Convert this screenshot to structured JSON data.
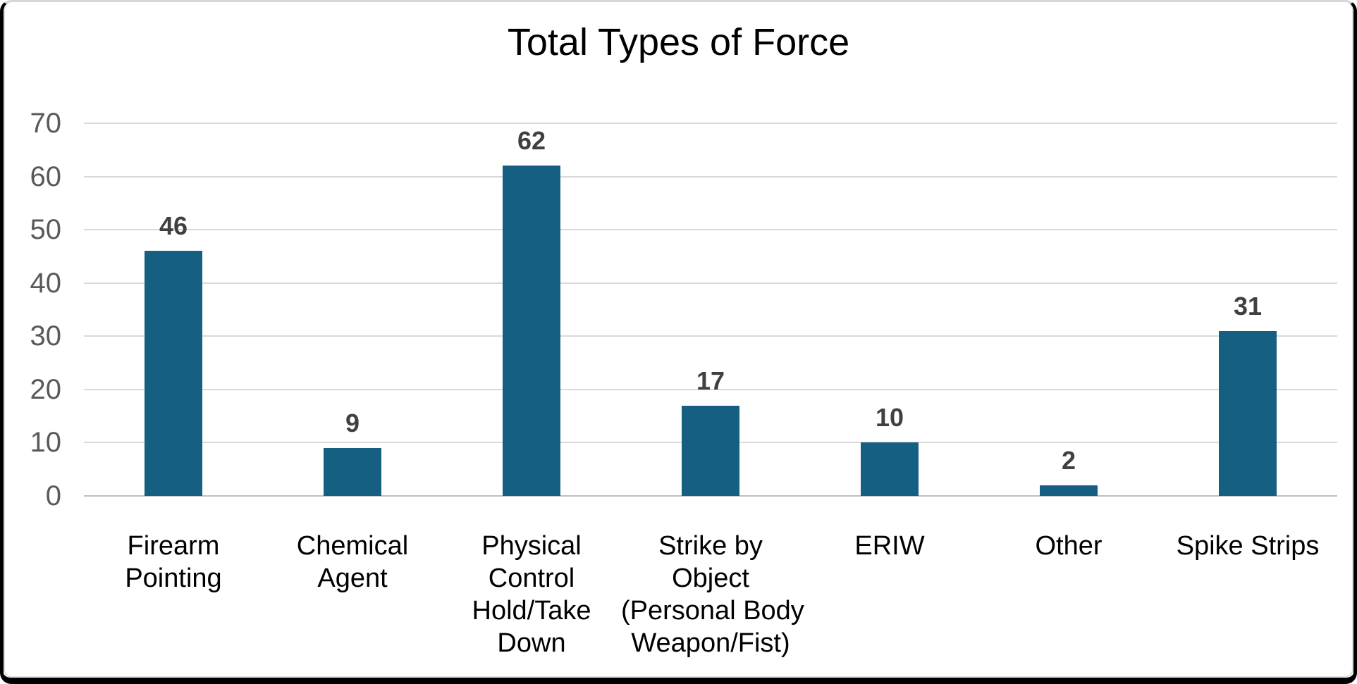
{
  "title": "Total Types of Force",
  "colors": {
    "bar_fill": "#156082",
    "gridline": "#d9d9d9",
    "axis_line": "#bfbfbf",
    "ytick_label": "#595959",
    "data_label": "#404040",
    "category_label": "#000000",
    "title_color": "#000000",
    "frame_border": "#000000",
    "inner_border": "#dedede",
    "background": "#ffffff"
  },
  "chart_data": {
    "type": "bar",
    "title": "Total Types of Force",
    "categories": [
      "Firearm Pointing",
      "Chemical Agent",
      "Physical Control Hold/Take Down",
      "Strike by Object (Personal Body Weapon/Fist)",
      "ERIW",
      "Other",
      "Spike Strips"
    ],
    "category_label_lines": [
      [
        "Firearm",
        "Pointing"
      ],
      [
        "Chemical",
        "Agent"
      ],
      [
        "Physical",
        "Control",
        "Hold/Take",
        "Down"
      ],
      [
        "Strike by",
        "Object",
        "(Personal Body",
        "Weapon/Fist)"
      ],
      [
        "ERIW"
      ],
      [
        "Other"
      ],
      [
        "Spike Strips"
      ]
    ],
    "values": [
      46,
      9,
      62,
      17,
      10,
      2,
      31
    ],
    "data_labels": [
      "46",
      "9",
      "62",
      "17",
      "10",
      "2",
      "31"
    ],
    "xlabel": "",
    "ylabel": "",
    "ylim": [
      0,
      70
    ],
    "yticks": [
      0,
      10,
      20,
      30,
      40,
      50,
      60,
      70
    ],
    "grid": true,
    "legend": false,
    "data_labels_position": "outside-end"
  }
}
